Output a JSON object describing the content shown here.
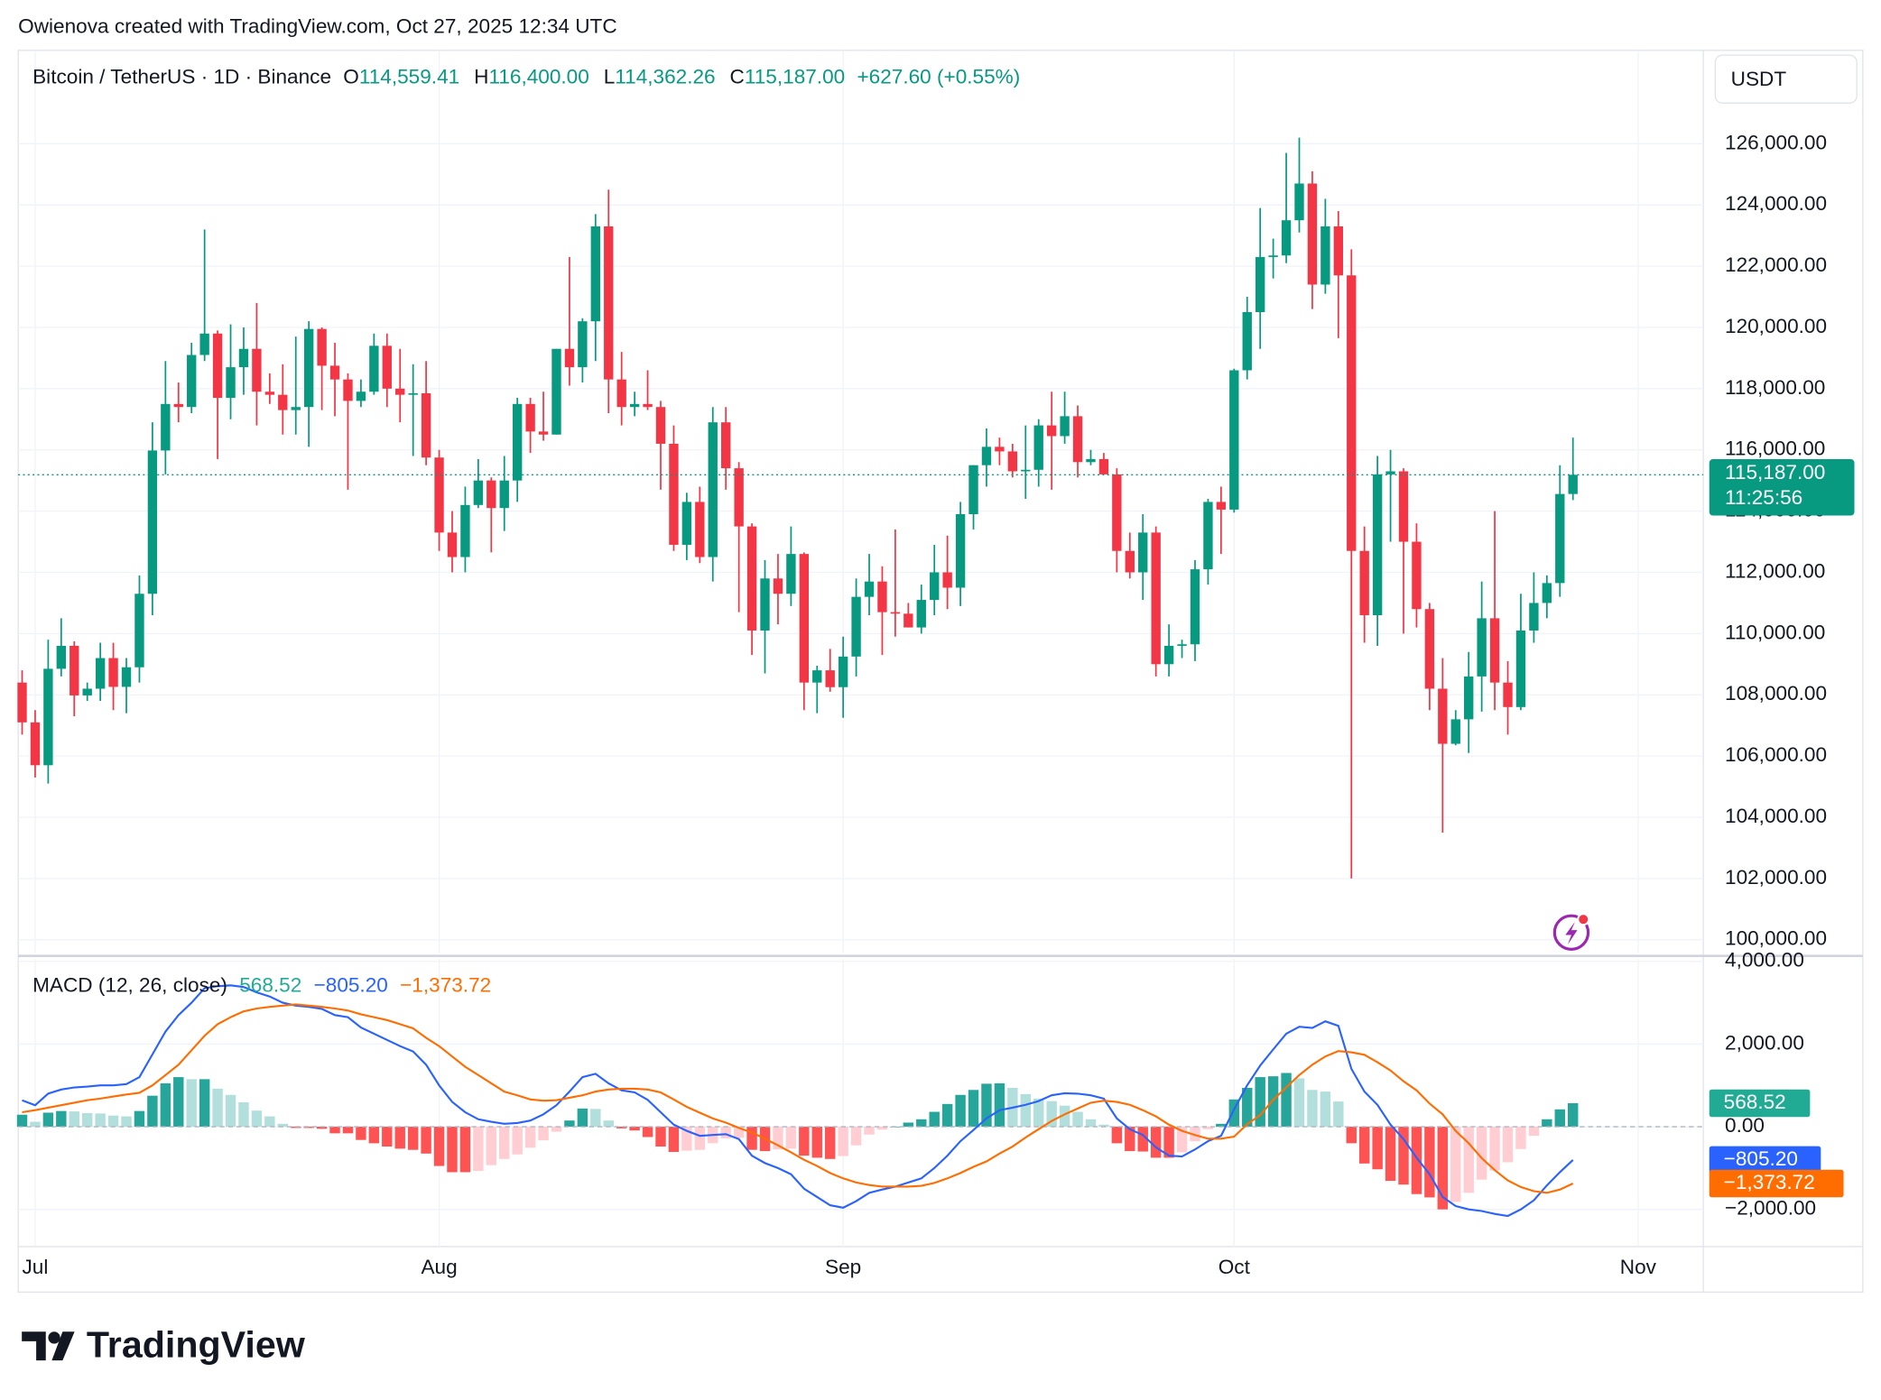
{
  "attribution": "Owienova created with TradingView.com, Oct 27, 2025 12:34 UTC",
  "brand": "TradingView",
  "chart_data": [
    {
      "type": "candlestick",
      "symbol": "Bitcoin / TetherUS · 1D · Binance",
      "ohlc_legend": [
        {
          "key": "O",
          "value": "114,559.41"
        },
        {
          "key": "H",
          "value": "116,400.00"
        },
        {
          "key": "L",
          "value": "114,362.26"
        },
        {
          "key": "C",
          "value": "115,187.00"
        }
      ],
      "change": "+627.60 (+0.55%)",
      "currency": "USDT",
      "up_color": "#089981",
      "down_color": "#f23645",
      "grid": true,
      "open": [
        108400,
        107100,
        105700,
        108850,
        109600,
        107980,
        108200,
        109200,
        108260,
        108900,
        111300,
        115980,
        117500,
        117400,
        119100,
        119800,
        117700,
        118700,
        119300,
        117900,
        117800,
        117300,
        117400,
        119950,
        118750,
        118300,
        117600,
        117900,
        119400,
        118000,
        117800,
        117850,
        115750,
        113300,
        112500,
        114200,
        115000,
        114100,
        115000,
        117500,
        116600,
        116500,
        119300,
        118700,
        120200,
        123300,
        118300,
        117400,
        117500,
        117400,
        116200,
        112900,
        114300,
        112500,
        116900,
        115400,
        113500,
        110100,
        111800,
        111300,
        112600,
        108400,
        108800,
        108250,
        109250,
        111200,
        111700,
        110700,
        110650,
        110200,
        111100,
        112000,
        111500,
        113900,
        115500,
        116100,
        115950,
        115300,
        115350,
        116800,
        116450,
        117100,
        115600,
        115700,
        115200,
        112700,
        112000,
        113300,
        109000,
        109600,
        109650,
        112100,
        114300,
        114050,
        118600,
        120500,
        122300,
        122350,
        123500,
        124700,
        121400,
        123300,
        121700,
        112700,
        110600,
        115200,
        115300,
        113000,
        110800,
        108200,
        106400,
        107200,
        108600,
        110500,
        108400,
        107600,
        110100,
        111000,
        111650,
        114559.41
      ],
      "high": [
        108800,
        107500,
        109800,
        110500,
        109750,
        108400,
        109700,
        109700,
        109200,
        111900,
        116900,
        118900,
        118200,
        119500,
        123200,
        119900,
        120100,
        120000,
        120800,
        118500,
        118800,
        119700,
        120200,
        120000,
        119500,
        118500,
        118300,
        119800,
        119800,
        119300,
        118800,
        118900,
        116000,
        114000,
        114800,
        115700,
        115100,
        115800,
        117700,
        117700,
        117900,
        119300,
        122300,
        120300,
        123700,
        124500,
        119200,
        117900,
        118600,
        117600,
        116800,
        114600,
        114800,
        117400,
        117400,
        115600,
        113600,
        112400,
        112600,
        113500,
        112650,
        108950,
        109500,
        109900,
        111800,
        112600,
        112200,
        113400,
        111000,
        111600,
        112900,
        113200,
        114300,
        115500,
        116700,
        116400,
        116200,
        116800,
        117000,
        117900,
        117900,
        117450,
        116000,
        115900,
        115400,
        113300,
        113900,
        113500,
        110300,
        109800,
        112400,
        114400,
        114800,
        118650,
        121000,
        123900,
        122900,
        125700,
        126200,
        125100,
        124200,
        123800,
        122550,
        113500,
        115800,
        116000,
        115400,
        113600,
        111000,
        109200,
        107500,
        109400,
        111700,
        114000,
        109100,
        111300,
        112000,
        111900,
        115500,
        116400
      ],
      "low": [
        106700,
        105300,
        105100,
        108600,
        107300,
        107800,
        107800,
        107500,
        107400,
        108400,
        110600,
        115200,
        116900,
        117200,
        118900,
        115700,
        117000,
        117800,
        116800,
        117500,
        116500,
        116500,
        116100,
        117300,
        117100,
        114700,
        117400,
        117800,
        117400,
        116900,
        115800,
        115500,
        112700,
        112000,
        112000,
        114100,
        112650,
        113350,
        114300,
        115900,
        116300,
        116500,
        118100,
        118200,
        118900,
        117200,
        116800,
        117100,
        117300,
        114700,
        112700,
        112400,
        112300,
        111700,
        114700,
        110700,
        109300,
        108700,
        110300,
        110900,
        107500,
        107400,
        108100,
        107250,
        108600,
        110600,
        109300,
        109900,
        110200,
        110000,
        110600,
        110800,
        110900,
        113400,
        114800,
        115500,
        115100,
        114400,
        114800,
        114700,
        116200,
        115100,
        115500,
        115200,
        112000,
        111800,
        111100,
        108600,
        108600,
        109200,
        109100,
        111600,
        112600,
        113950,
        118300,
        119300,
        121600,
        122100,
        123100,
        120600,
        121100,
        119650,
        102000,
        109700,
        109600,
        113000,
        110000,
        110200,
        107500,
        103500,
        106350,
        106100,
        107450,
        107500,
        106700,
        107500,
        109700,
        110500,
        111200,
        114362.26
      ],
      "close": [
        107100,
        105700,
        108850,
        109600,
        107980,
        108200,
        109200,
        108260,
        108900,
        111300,
        115980,
        117500,
        117400,
        119100,
        119800,
        117700,
        118700,
        119300,
        117900,
        117800,
        117300,
        117400,
        119950,
        118750,
        118300,
        117600,
        117900,
        119400,
        118000,
        117800,
        117850,
        115750,
        113300,
        112500,
        114200,
        115000,
        114100,
        115000,
        117500,
        116600,
        116500,
        119300,
        118700,
        120200,
        123300,
        118300,
        117400,
        117500,
        117400,
        116200,
        112900,
        114300,
        112500,
        116900,
        115400,
        113500,
        110100,
        111800,
        111300,
        112600,
        108400,
        108800,
        108250,
        109250,
        111200,
        111700,
        110700,
        110650,
        110200,
        111100,
        112000,
        111500,
        113900,
        115500,
        116100,
        115950,
        115300,
        115350,
        116800,
        116450,
        117100,
        115600,
        115700,
        115200,
        112700,
        112000,
        113300,
        109000,
        109600,
        109650,
        112100,
        114300,
        114050,
        118600,
        120500,
        122300,
        122350,
        123500,
        124700,
        121400,
        123300,
        121700,
        112700,
        110600,
        115200,
        115300,
        113000,
        110800,
        108200,
        106400,
        107200,
        108600,
        110500,
        108400,
        107600,
        110100,
        111000,
        111650,
        114559.41,
        115187
      ],
      "xlim": [
        -0.3,
        129
      ],
      "xticks": [
        {
          "value": 1,
          "label": "Jul"
        },
        {
          "value": 32,
          "label": "Aug"
        },
        {
          "value": 63,
          "label": "Sep"
        },
        {
          "value": 93,
          "label": "Oct"
        },
        {
          "value": 124,
          "label": "Nov"
        }
      ],
      "ylim": [
        99570,
        129050
      ],
      "yticks": [
        {
          "value": 100000,
          "label": "100,000.00"
        },
        {
          "value": 102000,
          "label": "102,000.00"
        },
        {
          "value": 104000,
          "label": "104,000.00"
        },
        {
          "value": 106000,
          "label": "106,000.00"
        },
        {
          "value": 108000,
          "label": "108,000.00"
        },
        {
          "value": 110000,
          "label": "110,000.00"
        },
        {
          "value": 112000,
          "label": "112,000.00"
        },
        {
          "value": 114000,
          "label": "114,000.00"
        },
        {
          "value": 116000,
          "label": "116,000.00"
        },
        {
          "value": 118000,
          "label": "118,000.00"
        },
        {
          "value": 120000,
          "label": "120,000.00"
        },
        {
          "value": 122000,
          "label": "122,000.00"
        },
        {
          "value": 124000,
          "label": "124,000.00"
        },
        {
          "value": 126000,
          "label": "126,000.00"
        }
      ],
      "last_price": {
        "value": 115187,
        "label": "115,187.00"
      },
      "countdown": "11:25:56"
    },
    {
      "type": "macd",
      "title": "MACD (12, 26, close)",
      "series": [
        {
          "color": "#2962ff",
          "last_label": "−805.20",
          "values": [
            640,
            520,
            800,
            900,
            950,
            970,
            1000,
            1000,
            1030,
            1200,
            1750,
            2300,
            2700,
            3000,
            3350,
            3400,
            3420,
            3380,
            3250,
            3150,
            3000,
            2930,
            2900,
            2850,
            2700,
            2650,
            2400,
            2250,
            2100,
            1950,
            1820,
            1500,
            1000,
            600,
            350,
            180,
            120,
            70,
            90,
            150,
            300,
            520,
            850,
            1200,
            1280,
            1050,
            880,
            830,
            650,
            350,
            50,
            -100,
            -220,
            -200,
            -180,
            -300,
            -700,
            -880,
            -1000,
            -1150,
            -1500,
            -1700,
            -1900,
            -1960,
            -1800,
            -1600,
            -1520,
            -1450,
            -1350,
            -1250,
            -1000,
            -700,
            -350,
            -80,
            200,
            400,
            460,
            530,
            620,
            760,
            810,
            800,
            760,
            680,
            200,
            -60,
            -200,
            -500,
            -700,
            -720,
            -550,
            -350,
            -220,
            420,
            1000,
            1480,
            1870,
            2250,
            2420,
            2390,
            2550,
            2440,
            1400,
            850,
            530,
            50,
            -300,
            -750,
            -1150,
            -1700,
            -1920,
            -2000,
            -2040,
            -2110,
            -2160,
            -2000,
            -1780,
            -1420,
            -1100,
            -805.2
          ]
        },
        {
          "color": "#ff6d00",
          "last_label": "−1,373.72",
          "values": [
            350,
            400,
            460,
            520,
            580,
            640,
            680,
            730,
            780,
            820,
            1000,
            1250,
            1500,
            1850,
            2200,
            2480,
            2650,
            2790,
            2860,
            2900,
            2930,
            2960,
            2930,
            2900,
            2860,
            2810,
            2720,
            2650,
            2580,
            2480,
            2380,
            2150,
            1950,
            1700,
            1450,
            1250,
            1050,
            850,
            760,
            660,
            630,
            640,
            700,
            760,
            850,
            900,
            920,
            920,
            900,
            830,
            660,
            480,
            340,
            200,
            100,
            -30,
            -140,
            -290,
            -450,
            -620,
            -800,
            -950,
            -1120,
            -1250,
            -1350,
            -1410,
            -1450,
            -1450,
            -1450,
            -1430,
            -1360,
            -1250,
            -1120,
            -970,
            -840,
            -650,
            -480,
            -260,
            -60,
            140,
            300,
            440,
            580,
            630,
            600,
            530,
            400,
            250,
            50,
            -100,
            -200,
            -290,
            -290,
            -240,
            60,
            280,
            650,
            950,
            1250,
            1500,
            1700,
            1830,
            1800,
            1740,
            1560,
            1360,
            1100,
            880,
            560,
            300,
            -100,
            -400,
            -760,
            -1050,
            -1300,
            -1460,
            -1560,
            -1600,
            -1520,
            -1373.72
          ]
        }
      ],
      "histogram": {
        "last_label": "568.52",
        "label_color": "#22ab94",
        "colors": {
          "rising_above": "#26a69a",
          "falling_above": "#b2dfdb",
          "falling_below": "#ff5252",
          "rising_below": "#ffcdd2"
        },
        "values": [
          290,
          120,
          340,
          380,
          370,
          330,
          320,
          270,
          250,
          380,
          750,
          1050,
          1200,
          1150,
          1150,
          920,
          770,
          590,
          390,
          250,
          70,
          -30,
          -30,
          -50,
          -160,
          -160,
          -320,
          -400,
          -480,
          -530,
          -560,
          -650,
          -950,
          -1100,
          -1100,
          -1070,
          -930,
          -780,
          -670,
          -510,
          -330,
          -120,
          150,
          440,
          430,
          150,
          -40,
          -90,
          -250,
          -480,
          -610,
          -580,
          -560,
          -400,
          -280,
          -270,
          -560,
          -590,
          -550,
          -530,
          -700,
          -750,
          -780,
          -710,
          -450,
          -190,
          -70,
          0,
          100,
          180,
          360,
          550,
          770,
          890,
          1040,
          1050,
          940,
          790,
          680,
          620,
          510,
          360,
          180,
          50,
          -400,
          -590,
          -600,
          -750,
          -750,
          -620,
          -350,
          -60,
          70,
          660,
          940,
          1200,
          1220,
          1300,
          1170,
          890,
          850,
          610,
          -400,
          -890,
          -1030,
          -1310,
          -1400,
          -1630,
          -1710,
          -2000,
          -1820,
          -1600,
          -1280,
          -1060,
          -860,
          -540,
          -220,
          180,
          420,
          568.52
        ]
      },
      "ylim": [
        -2900,
        4060
      ],
      "yticks": [
        {
          "value": -2000,
          "label": "−2,000.00"
        },
        {
          "value": 0,
          "label": "0.00"
        },
        {
          "value": 2000,
          "label": "2,000.00"
        },
        {
          "value": 4000,
          "label": "4,000.00"
        }
      ]
    }
  ]
}
